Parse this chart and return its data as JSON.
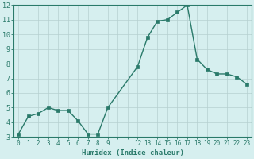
{
  "x": [
    0,
    1,
    2,
    3,
    4,
    5,
    6,
    7,
    8,
    9,
    12,
    13,
    14,
    15,
    16,
    17,
    18,
    19,
    20,
    21,
    22,
    23
  ],
  "y": [
    3.2,
    4.4,
    4.6,
    5.0,
    4.8,
    4.8,
    4.1,
    3.2,
    3.2,
    5.0,
    7.8,
    9.8,
    10.9,
    11.0,
    11.5,
    12.0,
    8.3,
    7.6,
    7.3,
    7.3,
    7.1,
    6.6
  ],
  "xlabel": "Humidex (Indice chaleur)",
  "ylim": [
    3,
    12
  ],
  "xlim": [
    -0.5,
    23.5
  ],
  "line_color": "#2a7a6a",
  "marker_color": "#2a7a6a",
  "bg_color": "#d6efef",
  "grid_color": "#b5d0d0",
  "tick_color": "#2a7a6a",
  "label_color": "#2a7a6a",
  "xtick_positions": [
    0,
    1,
    2,
    3,
    4,
    5,
    6,
    7,
    8,
    9,
    10,
    11,
    12,
    13,
    14,
    15,
    16,
    17,
    18,
    19,
    20,
    21,
    22,
    23
  ],
  "xtick_labels": [
    "0",
    "1",
    "2",
    "3",
    "4",
    "5",
    "6",
    "7",
    "8",
    "9",
    "",
    "",
    "12",
    "13",
    "14",
    "15",
    "16",
    "17",
    "18",
    "19",
    "20",
    "21",
    "22",
    "23"
  ],
  "yticks": [
    3,
    4,
    5,
    6,
    7,
    8,
    9,
    10,
    11,
    12
  ]
}
